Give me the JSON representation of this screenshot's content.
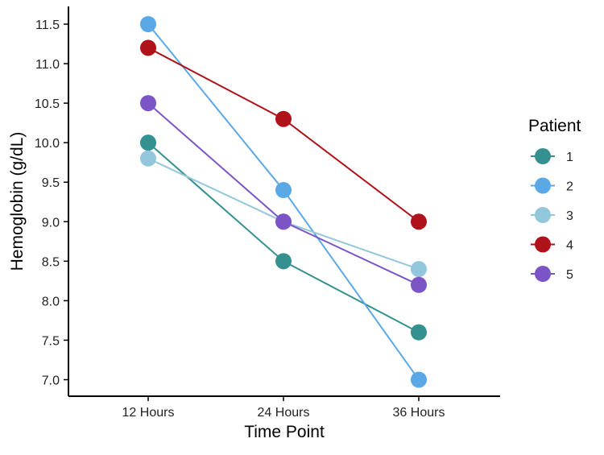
{
  "chart_data": {
    "type": "line",
    "xlabel": "Time Point",
    "ylabel": "Hemoglobin (g/dL)",
    "categories": [
      "12 Hours",
      "24 Hours",
      "36 Hours"
    ],
    "ylim": [
      6.8,
      11.7
    ],
    "yticks": [
      "7.0",
      "7.5",
      "8.0",
      "8.5",
      "9.0",
      "9.5",
      "10.0",
      "10.5",
      "11.0",
      "11.5"
    ],
    "grid": false,
    "legend": {
      "title": "Patient",
      "position": "right"
    },
    "series": [
      {
        "name": "1",
        "color": "#34918F",
        "values": [
          10.0,
          8.5,
          7.6
        ]
      },
      {
        "name": "2",
        "color": "#5AA8E6",
        "values": [
          11.5,
          9.4,
          7.0
        ]
      },
      {
        "name": "3",
        "color": "#93C8DC",
        "values": [
          9.8,
          9.0,
          8.4
        ]
      },
      {
        "name": "4",
        "color": "#B0121A",
        "values": [
          11.2,
          10.3,
          9.0
        ]
      },
      {
        "name": "5",
        "color": "#7B55C6",
        "values": [
          10.5,
          9.0,
          8.2
        ]
      }
    ]
  }
}
